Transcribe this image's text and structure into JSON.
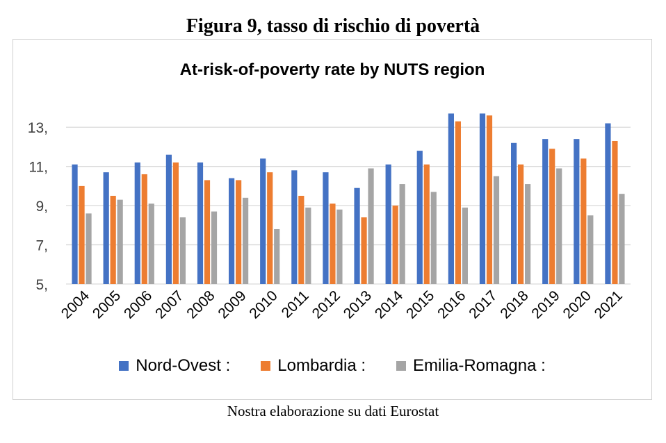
{
  "figure_title": "Figura 9, tasso di rischio di povertà",
  "source_note": "Nostra elaborazione su dati Eurostat",
  "colors": {
    "Nord-Ovest": "#4472C4",
    "Lombardia": "#ED7D31",
    "Emilia-Romagna": "#A5A5A5",
    "grid": "#d9d9d9"
  },
  "legend": [
    {
      "label": "Nord-Ovest :",
      "color": "#4472C4"
    },
    {
      "label": "Lombardia :",
      "color": "#ED7D31"
    },
    {
      "label": "Emilia-Romagna :",
      "color": "#A5A5A5"
    }
  ],
  "chart_data": {
    "type": "bar",
    "title": "At-risk-of-poverty rate by NUTS region",
    "xlabel": "",
    "ylabel": "",
    "ylim": [
      5,
      14
    ],
    "yticks": [
      5,
      7,
      9,
      11,
      13
    ],
    "ytick_labels": [
      "5,",
      "7,",
      "9,",
      "11,",
      "13,"
    ],
    "grid": true,
    "legend_position": "bottom",
    "categories": [
      "2004",
      "2005",
      "2006",
      "2007",
      "2008",
      "2009",
      "2010",
      "2011",
      "2012",
      "2013",
      "2014",
      "2015",
      "2016",
      "2017",
      "2018",
      "2019",
      "2020",
      "2021"
    ],
    "series": [
      {
        "name": "Nord-Ovest :",
        "values": [
          11.1,
          10.7,
          11.2,
          11.6,
          11.2,
          10.4,
          11.4,
          10.8,
          10.7,
          9.9,
          11.1,
          11.8,
          13.7,
          13.7,
          12.2,
          12.4,
          12.4,
          13.2
        ]
      },
      {
        "name": "Lombardia :",
        "values": [
          10.0,
          9.5,
          10.6,
          11.2,
          10.3,
          10.3,
          10.7,
          9.5,
          9.1,
          8.4,
          9.0,
          11.1,
          13.3,
          13.6,
          11.1,
          11.9,
          11.4,
          12.3
        ]
      },
      {
        "name": "Emilia-Romagna :",
        "values": [
          8.6,
          9.3,
          9.1,
          8.4,
          8.7,
          9.4,
          7.8,
          8.9,
          8.8,
          10.9,
          10.1,
          9.7,
          8.9,
          10.5,
          10.1,
          10.9,
          8.5,
          9.6
        ]
      }
    ]
  }
}
